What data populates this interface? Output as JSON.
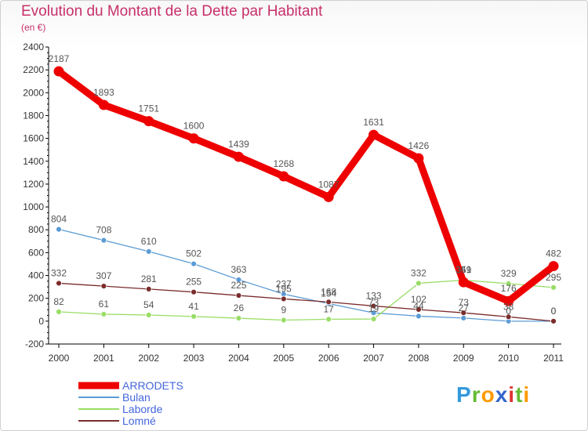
{
  "chart_data": {
    "type": "line",
    "title": "Evolution du Montant de la Dette par Habitant",
    "subtitle": "(en €)",
    "x": [
      "2000",
      "2001",
      "2002",
      "2003",
      "2004",
      "2005",
      "2006",
      "2007",
      "2008",
      "2009",
      "2010",
      "2011"
    ],
    "ylim": [
      -200,
      2400
    ],
    "yticks": [
      -200,
      0,
      200,
      400,
      600,
      800,
      1000,
      1200,
      1400,
      1600,
      1800,
      2000,
      2200,
      2400
    ],
    "grid": false,
    "legend_position": "bottom-left",
    "series": [
      {
        "name": "ARRODETS",
        "color": "#ee0000",
        "values": [
          2187,
          1893,
          1751,
          1600,
          1439,
          1268,
          1087,
          1631,
          1426,
          341,
          176,
          482
        ]
      },
      {
        "name": "Bulan",
        "color": "#5b9bd5",
        "values": [
          804,
          708,
          610,
          502,
          363,
          237,
          154,
          73,
          44,
          27,
          0,
          0
        ]
      },
      {
        "name": "Laborde",
        "color": "#99dd66",
        "values": [
          82,
          61,
          54,
          41,
          26,
          9,
          17,
          19,
          332,
          359,
          329,
          295
        ]
      },
      {
        "name": "Lomné",
        "color": "#7b2c2c",
        "values": [
          332,
          307,
          281,
          255,
          225,
          195,
          168,
          133,
          102,
          73,
          38,
          0
        ]
      }
    ]
  },
  "logo": {
    "text": "Proxiti",
    "letters": [
      "P",
      "r",
      "o",
      "x",
      "i",
      "t",
      "i"
    ],
    "colors": [
      "#3399dd",
      "#66bb33",
      "#ff9900",
      "#3366cc",
      "#dd3333",
      "#66bb33",
      "#ff9900"
    ]
  }
}
